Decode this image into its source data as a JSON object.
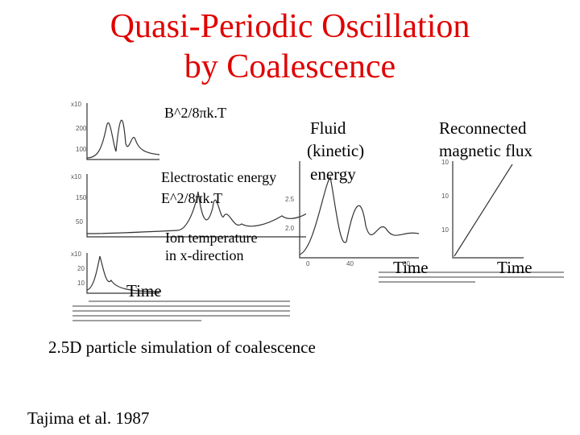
{
  "slide": {
    "title_line1": "Quasi-Periodic Oscillation",
    "title_line2": "by  Coalescence",
    "title_color": "#e00000"
  },
  "labels": {
    "b_energy": "B^2/8πk.T",
    "fluid_line1": "Fluid",
    "fluid_line2": "(kinetic)",
    "fluid_line3": "energy",
    "reconnected_line1": "Reconnected",
    "reconnected_line2": "magnetic flux",
    "electrostatic_line1": "Electrostatic energy",
    "electrostatic_line2": "E^2/8πk.T",
    "ion_line1": "Ion temperature",
    "ion_line2": "in x-direction",
    "time_left": "Time",
    "time_mid": "Time",
    "time_right": "Time"
  },
  "subtitle": "2.5D particle simulation of coalescence",
  "citation": "Tajima et al. 1987"
}
